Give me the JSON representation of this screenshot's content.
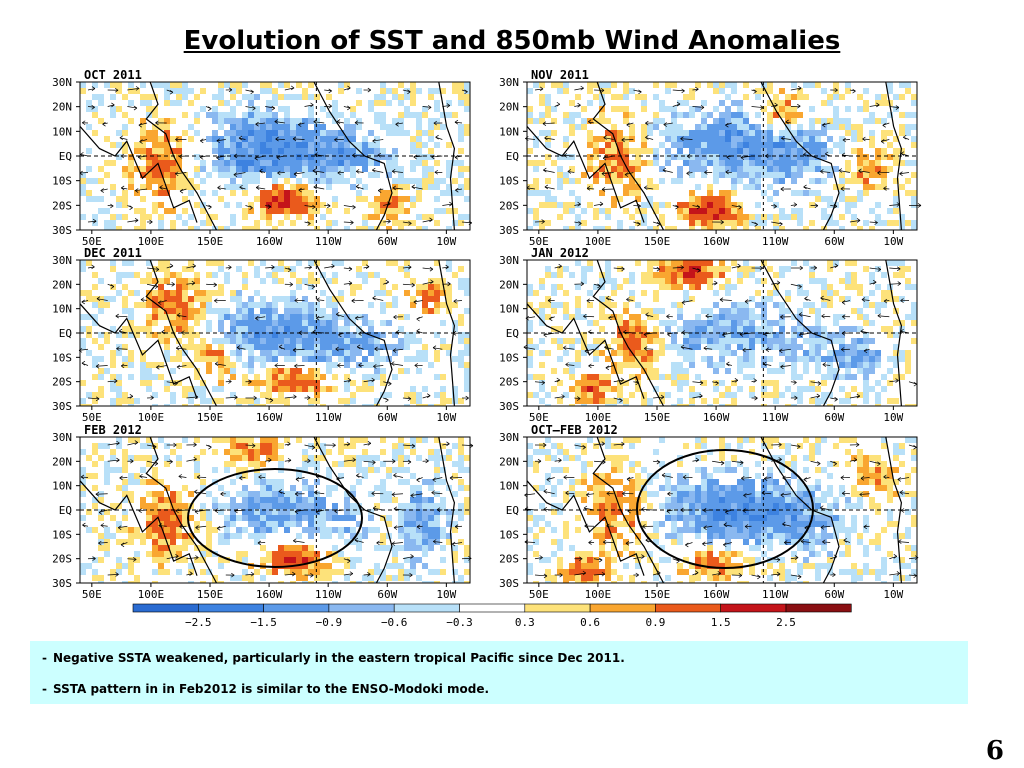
{
  "title": "Evolution of SST and 850mb Wind Anomalies",
  "chart_data": {
    "type": "heatmap",
    "variable": "SST and 850mb wind anomalies",
    "panels": [
      {
        "label": "OCT 2011"
      },
      {
        "label": "NOV 2011"
      },
      {
        "label": "DEC 2011"
      },
      {
        "label": "JAN 2012"
      },
      {
        "label": "FEB 2012"
      },
      {
        "label": "OCT–FEB 2012"
      }
    ],
    "lat_ticks": [
      "30N",
      "20N",
      "10N",
      "EQ",
      "10S",
      "20S",
      "30S"
    ],
    "lat_values": [
      30,
      20,
      10,
      0,
      -10,
      -20,
      -30
    ],
    "lon_ticks": [
      "50E",
      "100E",
      "150E",
      "160W",
      "110W",
      "60W",
      "10W"
    ],
    "lon_values": [
      50,
      100,
      150,
      200,
      250,
      300,
      350
    ],
    "lon_range": [
      40,
      370
    ],
    "lat_range": [
      -30,
      30
    ],
    "colorbar": {
      "labels": [
        "−2.5",
        "−1.5",
        "−0.9",
        "−0.6",
        "−0.3",
        "0.3",
        "0.6",
        "0.9",
        "1.5",
        "2.5"
      ],
      "colors": [
        "#2a6bd1",
        "#3d82e0",
        "#5c9ae8",
        "#8ab8f0",
        "#b8e0f8",
        "#ffffff",
        "#fde27a",
        "#f9a630",
        "#ea5a1c",
        "#c4141a",
        "#8a0f12"
      ]
    },
    "highlighted_regions": [
      {
        "panel": 4,
        "region": "central tropical Pacific"
      },
      {
        "panel": 5,
        "region": "central tropical Pacific"
      }
    ]
  },
  "notes": [
    {
      "dash": "-",
      "text": "Negative SSTA weakened, particularly in the eastern tropical Pacific since Dec 2011."
    },
    {
      "dash": "-",
      "text": "SSTA pattern in in Feb2012 is similar to the ENSO-Modoki mode."
    }
  ],
  "slide_number": "6"
}
